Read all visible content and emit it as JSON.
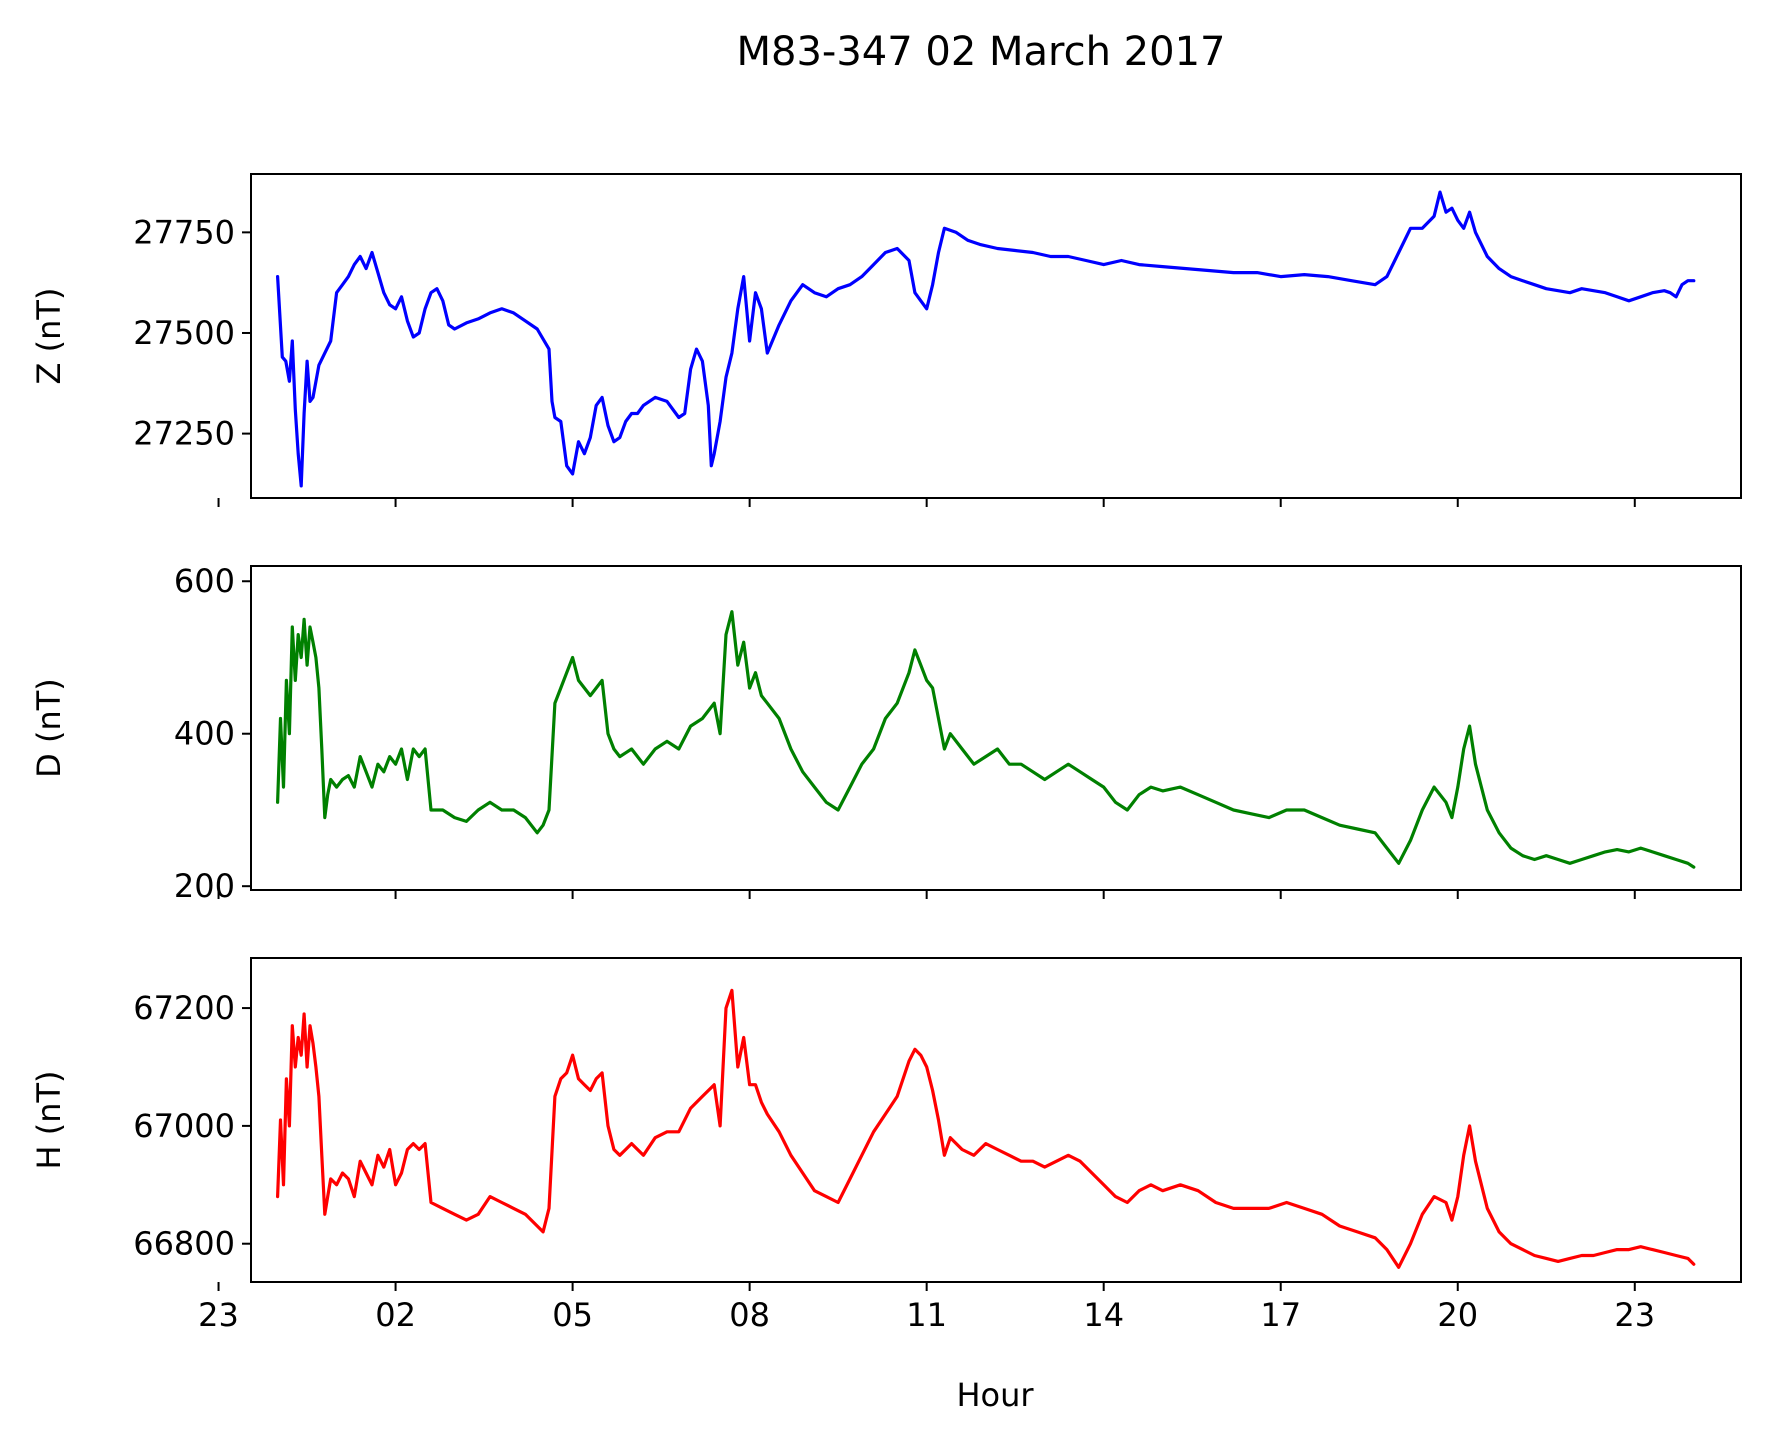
{
  "figure": {
    "title": "M83-347 02 March 2017",
    "xlabel": "Hour",
    "x_tick_labels": [
      "23",
      "02",
      "05",
      "08",
      "11",
      "14",
      "17",
      "20",
      "23"
    ]
  },
  "chart_data": [
    {
      "type": "line",
      "ylabel": "Z (nT)",
      "ylim": [
        27090,
        27895
      ],
      "yticks": [
        27250,
        27500,
        27750
      ],
      "xlim": [
        -0.45,
        24.8
      ],
      "xticks": [
        -1,
        2,
        5,
        8,
        11,
        14,
        17,
        20,
        23
      ],
      "x_tick_labels_visible": false,
      "series": [
        {
          "color": "#0000ff",
          "x": [
            0,
            0.08,
            0.14,
            0.2,
            0.25,
            0.3,
            0.35,
            0.4,
            0.45,
            0.5,
            0.55,
            0.6,
            0.7,
            0.8,
            0.9,
            1.0,
            1.1,
            1.2,
            1.3,
            1.4,
            1.5,
            1.6,
            1.7,
            1.8,
            1.9,
            2.0,
            2.1,
            2.2,
            2.3,
            2.4,
            2.5,
            2.6,
            2.7,
            2.8,
            2.9,
            3.0,
            3.2,
            3.4,
            3.6,
            3.8,
            4.0,
            4.2,
            4.4,
            4.6,
            4.65,
            4.7,
            4.8,
            4.9,
            5.0,
            5.1,
            5.2,
            5.3,
            5.4,
            5.5,
            5.6,
            5.7,
            5.8,
            5.9,
            6.0,
            6.1,
            6.2,
            6.4,
            6.6,
            6.8,
            6.9,
            7.0,
            7.1,
            7.2,
            7.3,
            7.35,
            7.4,
            7.5,
            7.6,
            7.7,
            7.8,
            7.9,
            8.0,
            8.1,
            8.2,
            8.3,
            8.5,
            8.7,
            8.9,
            9.1,
            9.3,
            9.5,
            9.7,
            9.9,
            10.1,
            10.3,
            10.5,
            10.7,
            10.8,
            10.9,
            11.0,
            11.1,
            11.2,
            11.3,
            11.5,
            11.7,
            11.9,
            12.2,
            12.5,
            12.8,
            13.1,
            13.4,
            13.7,
            14.0,
            14.3,
            14.6,
            15.0,
            15.4,
            15.8,
            16.2,
            16.6,
            17.0,
            17.4,
            17.8,
            18.2,
            18.6,
            18.8,
            19.0,
            19.2,
            19.4,
            19.6,
            19.7,
            19.8,
            19.9,
            20.0,
            20.1,
            20.2,
            20.3,
            20.4,
            20.5,
            20.7,
            20.9,
            21.1,
            21.3,
            21.5,
            21.7,
            21.9,
            22.1,
            22.3,
            22.5,
            22.7,
            22.9,
            23.1,
            23.3,
            23.5,
            23.6,
            23.7,
            23.8,
            23.9,
            24.0
          ],
          "values": [
            27640,
            27440,
            27430,
            27380,
            27480,
            27310,
            27200,
            27120,
            27300,
            27430,
            27330,
            27340,
            27420,
            27450,
            27480,
            27600,
            27620,
            27640,
            27670,
            27690,
            27660,
            27700,
            27650,
            27600,
            27570,
            27560,
            27590,
            27530,
            27490,
            27500,
            27560,
            27600,
            27610,
            27580,
            27520,
            27510,
            27525,
            27535,
            27550,
            27560,
            27550,
            27530,
            27510,
            27460,
            27330,
            27290,
            27280,
            27170,
            27150,
            27230,
            27200,
            27240,
            27320,
            27340,
            27270,
            27230,
            27240,
            27280,
            27300,
            27300,
            27320,
            27340,
            27330,
            27290,
            27300,
            27410,
            27460,
            27430,
            27320,
            27170,
            27200,
            27280,
            27390,
            27450,
            27560,
            27640,
            27480,
            27600,
            27560,
            27450,
            27520,
            27580,
            27620,
            27600,
            27590,
            27610,
            27620,
            27640,
            27670,
            27700,
            27710,
            27680,
            27600,
            27580,
            27560,
            27620,
            27700,
            27760,
            27750,
            27730,
            27720,
            27710,
            27705,
            27700,
            27690,
            27690,
            27680,
            27670,
            27680,
            27670,
            27665,
            27660,
            27655,
            27650,
            27650,
            27640,
            27645,
            27640,
            27630,
            27620,
            27640,
            27700,
            27760,
            27760,
            27790,
            27850,
            27800,
            27810,
            27780,
            27760,
            27800,
            27750,
            27720,
            27690,
            27660,
            27640,
            27630,
            27620,
            27610,
            27605,
            27600,
            27610,
            27605,
            27600,
            27590,
            27580,
            27590,
            27600,
            27605,
            27600,
            27590,
            27620,
            27630,
            27630
          ]
        }
      ]
    },
    {
      "type": "line",
      "ylabel": "D (nT)",
      "ylim": [
        195,
        620
      ],
      "yticks": [
        200,
        400,
        600
      ],
      "xlim": [
        -0.45,
        24.8
      ],
      "xticks": [
        -1,
        2,
        5,
        8,
        11,
        14,
        17,
        20,
        23
      ],
      "x_tick_labels_visible": false,
      "series": [
        {
          "color": "#008000",
          "x": [
            0,
            0.05,
            0.1,
            0.15,
            0.2,
            0.25,
            0.3,
            0.35,
            0.4,
            0.45,
            0.5,
            0.55,
            0.6,
            0.65,
            0.7,
            0.75,
            0.8,
            0.85,
            0.9,
            1.0,
            1.1,
            1.2,
            1.3,
            1.4,
            1.5,
            1.6,
            1.7,
            1.8,
            1.9,
            2.0,
            2.1,
            2.2,
            2.3,
            2.4,
            2.5,
            2.6,
            2.8,
            3.0,
            3.2,
            3.4,
            3.6,
            3.8,
            4.0,
            4.2,
            4.4,
            4.5,
            4.6,
            4.7,
            4.8,
            4.9,
            5.0,
            5.1,
            5.2,
            5.3,
            5.4,
            5.5,
            5.6,
            5.7,
            5.8,
            5.9,
            6.0,
            6.2,
            6.4,
            6.6,
            6.8,
            7.0,
            7.2,
            7.4,
            7.5,
            7.6,
            7.7,
            7.8,
            7.9,
            8.0,
            8.1,
            8.2,
            8.3,
            8.5,
            8.7,
            8.9,
            9.1,
            9.3,
            9.5,
            9.7,
            9.9,
            10.1,
            10.3,
            10.5,
            10.7,
            10.8,
            10.9,
            11.0,
            11.1,
            11.2,
            11.3,
            11.4,
            11.6,
            11.8,
            12.0,
            12.2,
            12.4,
            12.6,
            12.8,
            13.0,
            13.2,
            13.4,
            13.6,
            13.8,
            14.0,
            14.2,
            14.4,
            14.6,
            14.8,
            15.0,
            15.3,
            15.6,
            15.9,
            16.2,
            16.5,
            16.8,
            17.1,
            17.4,
            17.7,
            18.0,
            18.3,
            18.6,
            18.8,
            19.0,
            19.2,
            19.4,
            19.6,
            19.8,
            19.9,
            20.0,
            20.1,
            20.2,
            20.3,
            20.4,
            20.5,
            20.7,
            20.9,
            21.1,
            21.3,
            21.5,
            21.7,
            21.9,
            22.1,
            22.3,
            22.5,
            22.7,
            22.9,
            23.1,
            23.3,
            23.5,
            23.7,
            23.9,
            24.0
          ],
          "values": [
            310,
            420,
            330,
            470,
            400,
            540,
            470,
            530,
            500,
            550,
            490,
            540,
            520,
            500,
            460,
            380,
            290,
            320,
            340,
            330,
            340,
            345,
            330,
            370,
            350,
            330,
            360,
            350,
            370,
            360,
            380,
            340,
            380,
            370,
            380,
            300,
            300,
            290,
            285,
            300,
            310,
            300,
            300,
            290,
            270,
            280,
            300,
            440,
            460,
            480,
            500,
            470,
            460,
            450,
            460,
            470,
            400,
            380,
            370,
            375,
            380,
            360,
            380,
            390,
            380,
            410,
            420,
            440,
            400,
            530,
            560,
            490,
            520,
            460,
            480,
            450,
            440,
            420,
            380,
            350,
            330,
            310,
            300,
            330,
            360,
            380,
            420,
            440,
            480,
            510,
            490,
            470,
            460,
            420,
            380,
            400,
            380,
            360,
            370,
            380,
            360,
            360,
            350,
            340,
            350,
            360,
            350,
            340,
            330,
            310,
            300,
            320,
            330,
            325,
            330,
            320,
            310,
            300,
            295,
            290,
            300,
            300,
            290,
            280,
            275,
            270,
            250,
            230,
            260,
            300,
            330,
            310,
            290,
            330,
            380,
            410,
            360,
            330,
            300,
            270,
            250,
            240,
            235,
            240,
            235,
            230,
            235,
            240,
            245,
            248,
            245,
            250,
            245,
            240,
            235,
            230,
            225
          ]
        }
      ]
    },
    {
      "type": "line",
      "ylabel": "H (nT)",
      "ylim": [
        66735,
        67285
      ],
      "yticks": [
        66800,
        67000,
        67200
      ],
      "xlim": [
        -0.45,
        24.8
      ],
      "xticks": [
        -1,
        2,
        5,
        8,
        11,
        14,
        17,
        20,
        23
      ],
      "x_tick_labels_visible": true,
      "series": [
        {
          "color": "#ff0000",
          "x": [
            0,
            0.05,
            0.1,
            0.15,
            0.2,
            0.25,
            0.3,
            0.35,
            0.4,
            0.45,
            0.5,
            0.55,
            0.6,
            0.65,
            0.7,
            0.75,
            0.8,
            0.85,
            0.9,
            1.0,
            1.1,
            1.2,
            1.3,
            1.4,
            1.5,
            1.6,
            1.7,
            1.8,
            1.9,
            2.0,
            2.1,
            2.2,
            2.3,
            2.4,
            2.5,
            2.6,
            2.8,
            3.0,
            3.2,
            3.4,
            3.6,
            3.8,
            4.0,
            4.2,
            4.4,
            4.5,
            4.6,
            4.7,
            4.8,
            4.9,
            5.0,
            5.1,
            5.2,
            5.3,
            5.4,
            5.5,
            5.6,
            5.7,
            5.8,
            5.9,
            6.0,
            6.2,
            6.4,
            6.6,
            6.8,
            7.0,
            7.2,
            7.4,
            7.5,
            7.6,
            7.7,
            7.8,
            7.9,
            8.0,
            8.1,
            8.2,
            8.3,
            8.5,
            8.7,
            8.9,
            9.1,
            9.3,
            9.5,
            9.7,
            9.9,
            10.1,
            10.3,
            10.5,
            10.7,
            10.8,
            10.9,
            11.0,
            11.1,
            11.2,
            11.3,
            11.4,
            11.6,
            11.8,
            12.0,
            12.2,
            12.4,
            12.6,
            12.8,
            13.0,
            13.2,
            13.4,
            13.6,
            13.8,
            14.0,
            14.2,
            14.4,
            14.6,
            14.8,
            15.0,
            15.3,
            15.6,
            15.9,
            16.2,
            16.5,
            16.8,
            17.1,
            17.4,
            17.7,
            18.0,
            18.3,
            18.6,
            18.8,
            19.0,
            19.2,
            19.4,
            19.6,
            19.8,
            19.9,
            20.0,
            20.1,
            20.2,
            20.3,
            20.4,
            20.5,
            20.7,
            20.9,
            21.1,
            21.3,
            21.5,
            21.7,
            21.9,
            22.1,
            22.3,
            22.5,
            22.7,
            22.9,
            23.1,
            23.3,
            23.5,
            23.7,
            23.9,
            24.0
          ],
          "values": [
            66880,
            67010,
            66900,
            67080,
            67000,
            67170,
            67100,
            67150,
            67120,
            67190,
            67100,
            67170,
            67140,
            67100,
            67050,
            66950,
            66850,
            66880,
            66910,
            66900,
            66920,
            66910,
            66880,
            66940,
            66920,
            66900,
            66950,
            66930,
            66960,
            66900,
            66920,
            66960,
            66970,
            66960,
            66970,
            66870,
            66860,
            66850,
            66840,
            66850,
            66880,
            66870,
            66860,
            66850,
            66830,
            66820,
            66860,
            67050,
            67080,
            67090,
            67120,
            67080,
            67070,
            67060,
            67080,
            67090,
            67000,
            66960,
            66950,
            66960,
            66970,
            66950,
            66980,
            66990,
            66990,
            67030,
            67050,
            67070,
            67000,
            67200,
            67230,
            67100,
            67150,
            67070,
            67070,
            67040,
            67020,
            66990,
            66950,
            66920,
            66890,
            66880,
            66870,
            66910,
            66950,
            66990,
            67020,
            67050,
            67110,
            67130,
            67120,
            67100,
            67060,
            67010,
            66950,
            66980,
            66960,
            66950,
            66970,
            66960,
            66950,
            66940,
            66940,
            66930,
            66940,
            66950,
            66940,
            66920,
            66900,
            66880,
            66870,
            66890,
            66900,
            66890,
            66900,
            66890,
            66870,
            66860,
            66860,
            66860,
            66870,
            66860,
            66850,
            66830,
            66820,
            66810,
            66790,
            66760,
            66800,
            66850,
            66880,
            66870,
            66840,
            66880,
            66950,
            67000,
            66940,
            66900,
            66860,
            66820,
            66800,
            66790,
            66780,
            66775,
            66770,
            66775,
            66780,
            66780,
            66785,
            66790,
            66790,
            66795,
            66790,
            66785,
            66780,
            66775,
            66765
          ]
        }
      ]
    }
  ]
}
